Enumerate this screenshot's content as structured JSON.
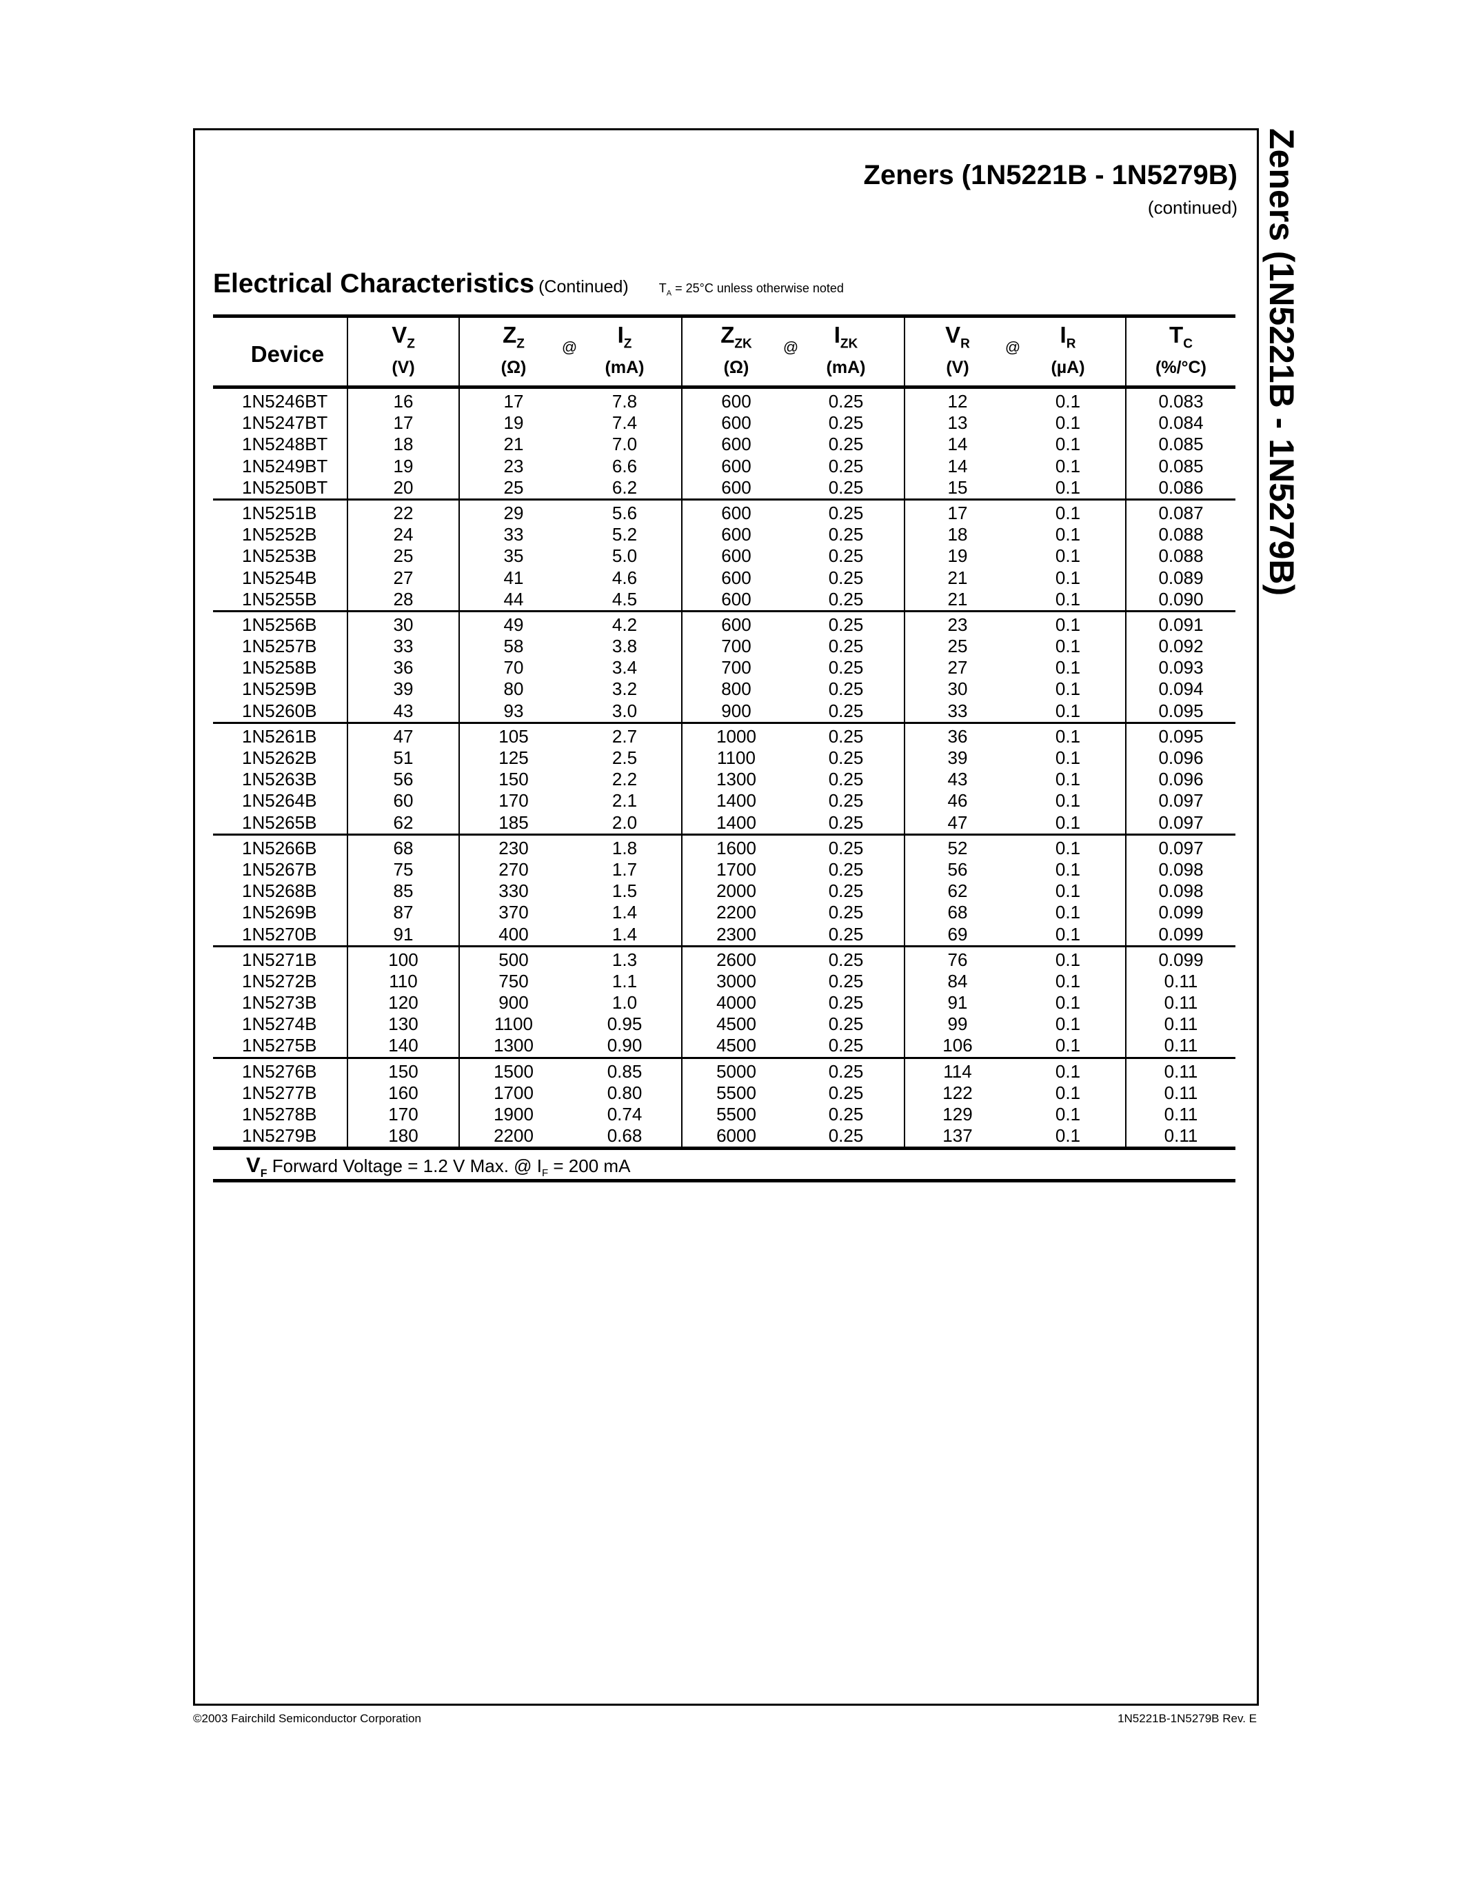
{
  "header": {
    "title": "Zeners (1N5221B - 1N5279B)",
    "subtitle": "(continued)"
  },
  "side_title": "Zeners (1N5221B - 1N5279B)",
  "section": {
    "heading": "Electrical Characteristics",
    "continued": "(Continued)",
    "note_symbol": "T",
    "note_sub": "A",
    "note_text": " = 25°C unless otherwise noted"
  },
  "table": {
    "columns": [
      {
        "sym": "Device",
        "sub": "",
        "unit": ""
      },
      {
        "sym": "V",
        "sub": "Z",
        "unit": "(V)"
      },
      {
        "sym": "Z",
        "sub": "Z",
        "unit": "(Ω)"
      },
      {
        "sym": "I",
        "sub": "Z",
        "unit": "(mA)"
      },
      {
        "sym": "Z",
        "sub": "ZK",
        "unit": "(Ω)"
      },
      {
        "sym": "I",
        "sub": "ZK",
        "unit": "(mA)"
      },
      {
        "sym": "V",
        "sub": "R",
        "unit": "(V)"
      },
      {
        "sym": "I",
        "sub": "R",
        "unit": "(µA)"
      },
      {
        "sym": "T",
        "sub": "C",
        "unit": "(%/°C)"
      }
    ],
    "at_label": "@",
    "groups": [
      [
        [
          "1N5246BT",
          "16",
          "17",
          "7.8",
          "600",
          "0.25",
          "12",
          "0.1",
          "0.083"
        ],
        [
          "1N5247BT",
          "17",
          "19",
          "7.4",
          "600",
          "0.25",
          "13",
          "0.1",
          "0.084"
        ],
        [
          "1N5248BT",
          "18",
          "21",
          "7.0",
          "600",
          "0.25",
          "14",
          "0.1",
          "0.085"
        ],
        [
          "1N5249BT",
          "19",
          "23",
          "6.6",
          "600",
          "0.25",
          "14",
          "0.1",
          "0.085"
        ],
        [
          "1N5250BT",
          "20",
          "25",
          "6.2",
          "600",
          "0.25",
          "15",
          "0.1",
          "0.086"
        ]
      ],
      [
        [
          "1N5251B",
          "22",
          "29",
          "5.6",
          "600",
          "0.25",
          "17",
          "0.1",
          "0.087"
        ],
        [
          "1N5252B",
          "24",
          "33",
          "5.2",
          "600",
          "0.25",
          "18",
          "0.1",
          "0.088"
        ],
        [
          "1N5253B",
          "25",
          "35",
          "5.0",
          "600",
          "0.25",
          "19",
          "0.1",
          "0.088"
        ],
        [
          "1N5254B",
          "27",
          "41",
          "4.6",
          "600",
          "0.25",
          "21",
          "0.1",
          "0.089"
        ],
        [
          "1N5255B",
          "28",
          "44",
          "4.5",
          "600",
          "0.25",
          "21",
          "0.1",
          "0.090"
        ]
      ],
      [
        [
          "1N5256B",
          "30",
          "49",
          "4.2",
          "600",
          "0.25",
          "23",
          "0.1",
          "0.091"
        ],
        [
          "1N5257B",
          "33",
          "58",
          "3.8",
          "700",
          "0.25",
          "25",
          "0.1",
          "0.092"
        ],
        [
          "1N5258B",
          "36",
          "70",
          "3.4",
          "700",
          "0.25",
          "27",
          "0.1",
          "0.093"
        ],
        [
          "1N5259B",
          "39",
          "80",
          "3.2",
          "800",
          "0.25",
          "30",
          "0.1",
          "0.094"
        ],
        [
          "1N5260B",
          "43",
          "93",
          "3.0",
          "900",
          "0.25",
          "33",
          "0.1",
          "0.095"
        ]
      ],
      [
        [
          "1N5261B",
          "47",
          "105",
          "2.7",
          "1000",
          "0.25",
          "36",
          "0.1",
          "0.095"
        ],
        [
          "1N5262B",
          "51",
          "125",
          "2.5",
          "1100",
          "0.25",
          "39",
          "0.1",
          "0.096"
        ],
        [
          "1N5263B",
          "56",
          "150",
          "2.2",
          "1300",
          "0.25",
          "43",
          "0.1",
          "0.096"
        ],
        [
          "1N5264B",
          "60",
          "170",
          "2.1",
          "1400",
          "0.25",
          "46",
          "0.1",
          "0.097"
        ],
        [
          "1N5265B",
          "62",
          "185",
          "2.0",
          "1400",
          "0.25",
          "47",
          "0.1",
          "0.097"
        ]
      ],
      [
        [
          "1N5266B",
          "68",
          "230",
          "1.8",
          "1600",
          "0.25",
          "52",
          "0.1",
          "0.097"
        ],
        [
          "1N5267B",
          "75",
          "270",
          "1.7",
          "1700",
          "0.25",
          "56",
          "0.1",
          "0.098"
        ],
        [
          "1N5268B",
          "85",
          "330",
          "1.5",
          "2000",
          "0.25",
          "62",
          "0.1",
          "0.098"
        ],
        [
          "1N5269B",
          "87",
          "370",
          "1.4",
          "2200",
          "0.25",
          "68",
          "0.1",
          "0.099"
        ],
        [
          "1N5270B",
          "91",
          "400",
          "1.4",
          "2300",
          "0.25",
          "69",
          "0.1",
          "0.099"
        ]
      ],
      [
        [
          "1N5271B",
          "100",
          "500",
          "1.3",
          "2600",
          "0.25",
          "76",
          "0.1",
          "0.099"
        ],
        [
          "1N5272B",
          "110",
          "750",
          "1.1",
          "3000",
          "0.25",
          "84",
          "0.1",
          "0.11"
        ],
        [
          "1N5273B",
          "120",
          "900",
          "1.0",
          "4000",
          "0.25",
          "91",
          "0.1",
          "0.11"
        ],
        [
          "1N5274B",
          "130",
          "1100",
          "0.95",
          "4500",
          "0.25",
          "99",
          "0.1",
          "0.11"
        ],
        [
          "1N5275B",
          "140",
          "1300",
          "0.90",
          "4500",
          "0.25",
          "106",
          "0.1",
          "0.11"
        ]
      ],
      [
        [
          "1N5276B",
          "150",
          "1500",
          "0.85",
          "5000",
          "0.25",
          "114",
          "0.1",
          "0.11"
        ],
        [
          "1N5277B",
          "160",
          "1700",
          "0.80",
          "5500",
          "0.25",
          "122",
          "0.1",
          "0.11"
        ],
        [
          "1N5278B",
          "170",
          "1900",
          "0.74",
          "5500",
          "0.25",
          "129",
          "0.1",
          "0.11"
        ],
        [
          "1N5279B",
          "180",
          "2200",
          "0.68",
          "6000",
          "0.25",
          "137",
          "0.1",
          "0.11"
        ]
      ]
    ],
    "footnote": {
      "sym": "V",
      "sub": "F",
      "text": "Forward Voltage = 1.2 V Max. @ I",
      "if_sub": "F",
      "tail": " = 200 mA"
    }
  },
  "footer": {
    "left": "©2003 Fairchild Semiconductor Corporation",
    "right": "1N5221B-1N5279B  Rev. E"
  }
}
